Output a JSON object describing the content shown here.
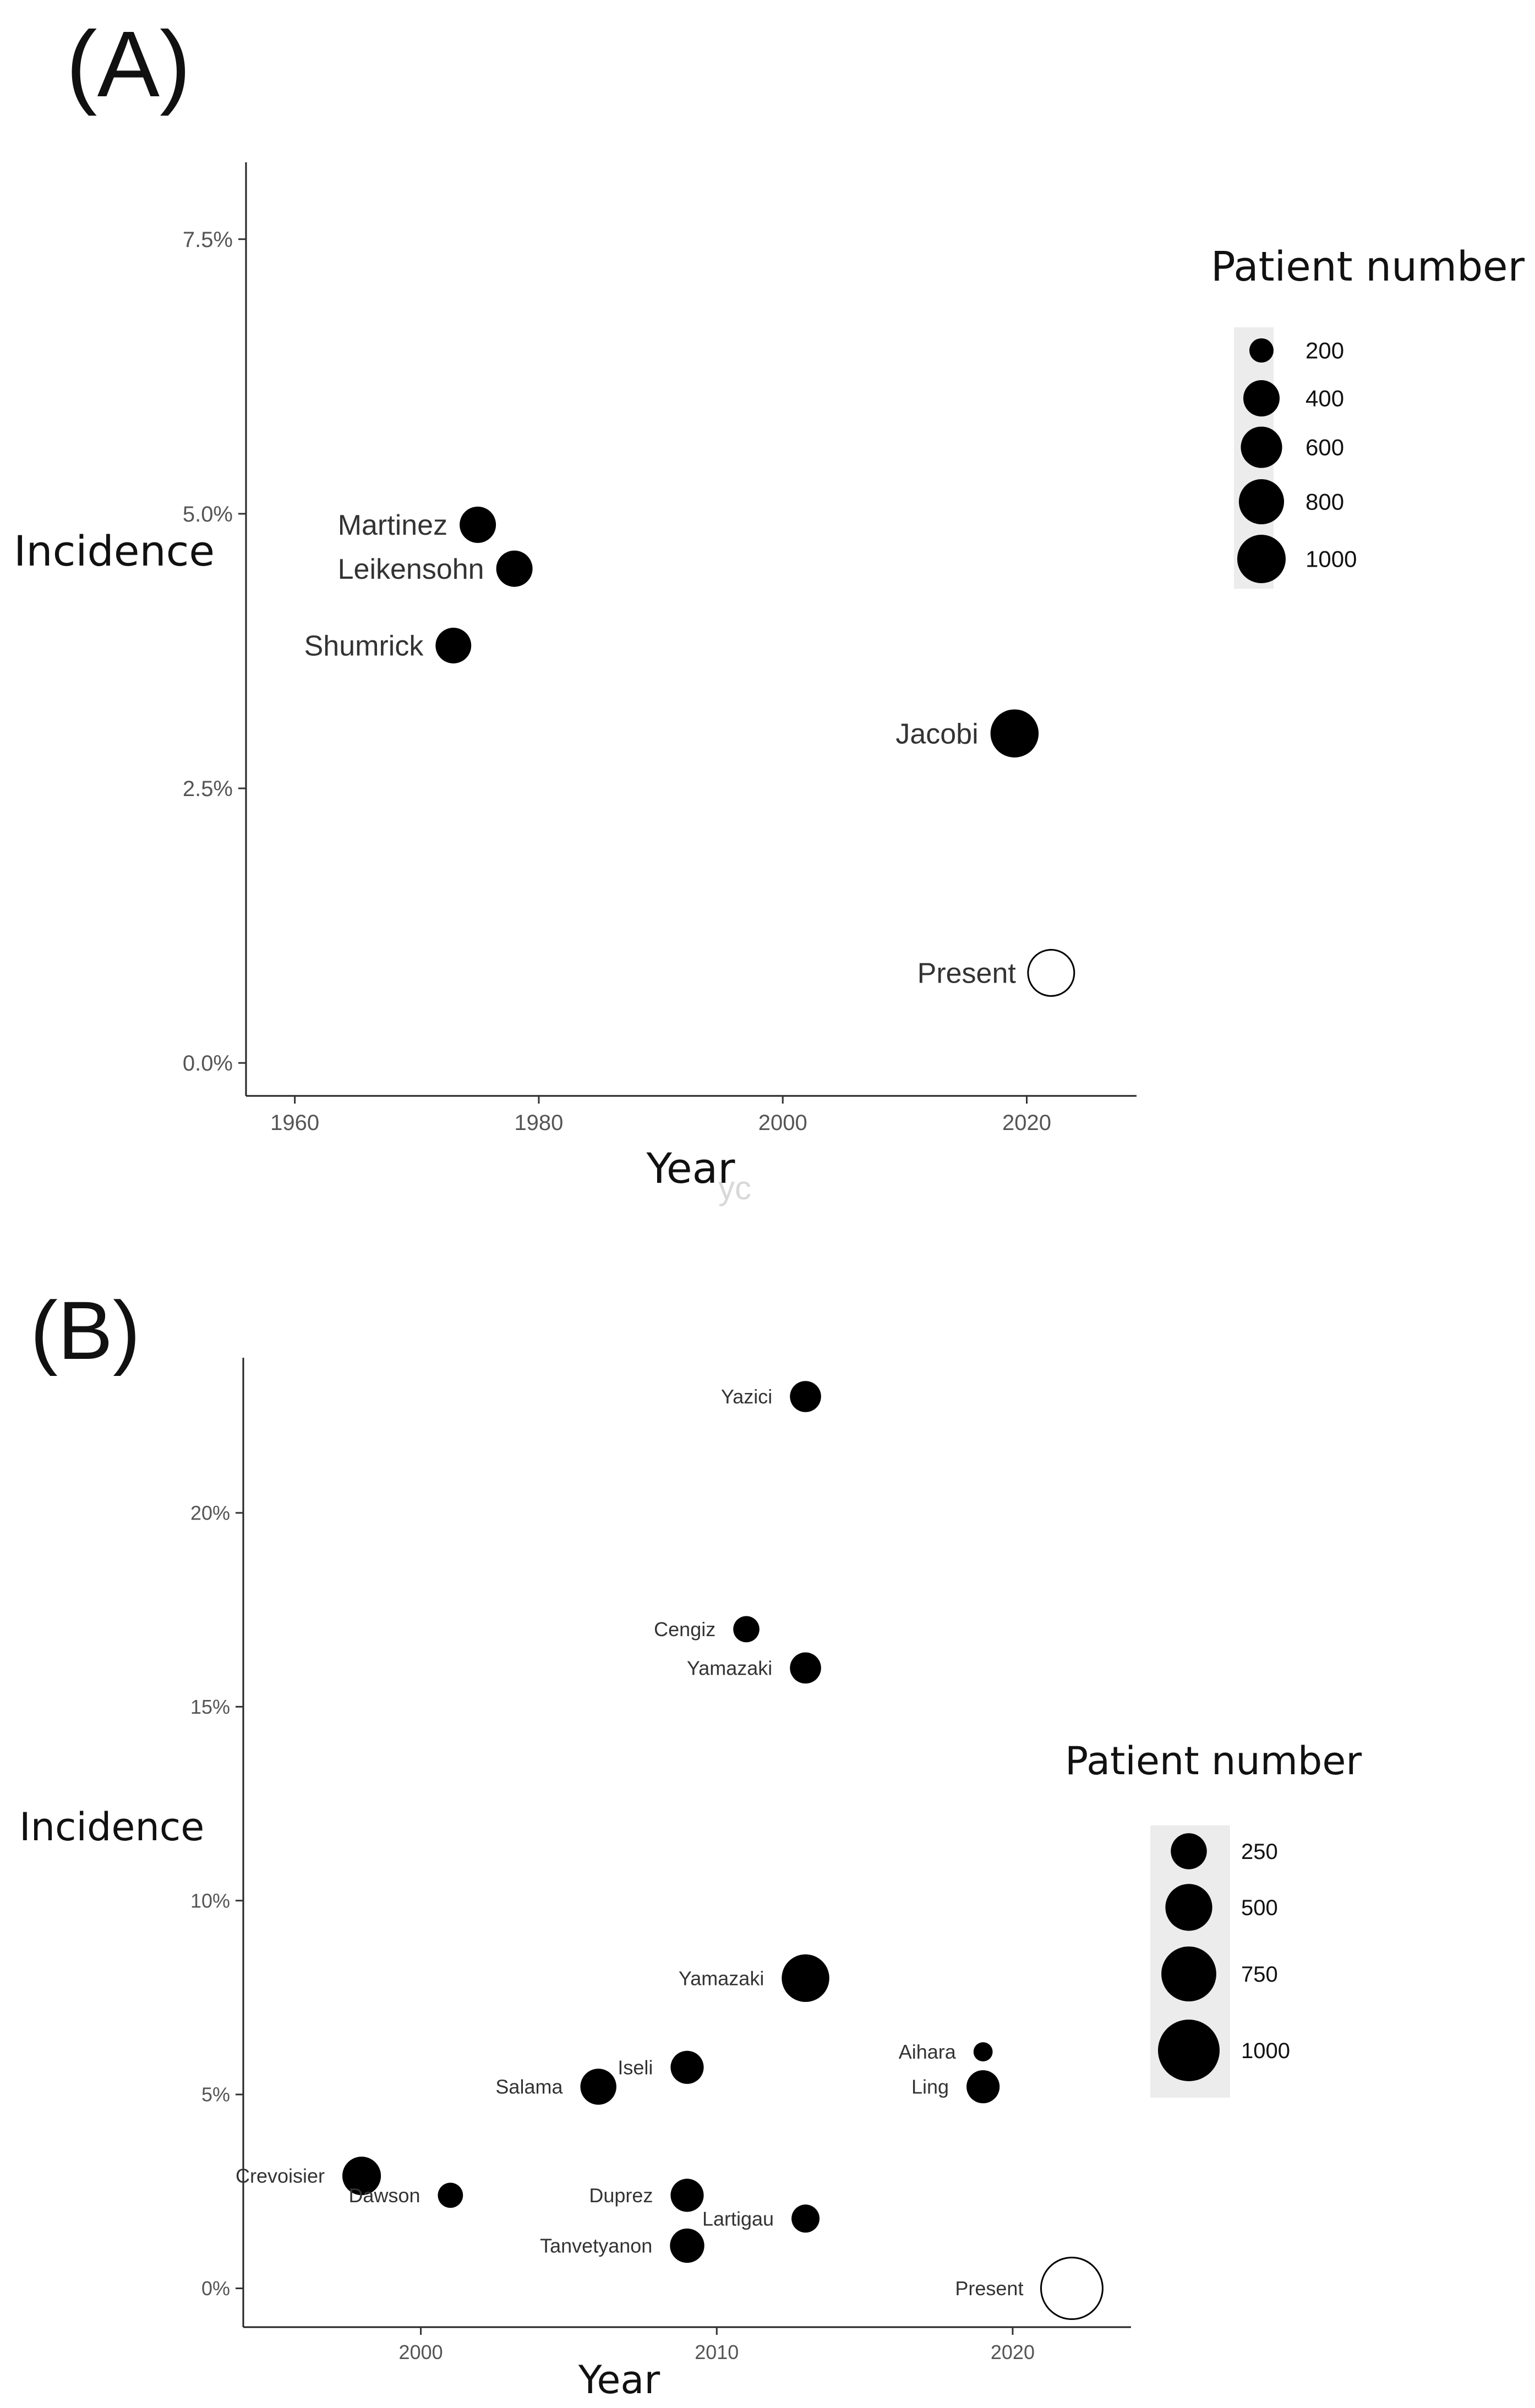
{
  "chart_data": [
    {
      "panel": "(A)",
      "type": "scatter",
      "title": "",
      "xlabel": "Year",
      "ylabel": "Incidence",
      "xlim": [
        1956,
        2029
      ],
      "ylim": [
        -0.3,
        8.2
      ],
      "x_ticks": [
        1960,
        1980,
        2000,
        2020
      ],
      "x_tick_labels": [
        "1960",
        "1980",
        "2000",
        "2020"
      ],
      "y_ticks": [
        0,
        2.5,
        5,
        7.5
      ],
      "y_tick_labels": [
        "0.0%",
        "2.5%",
        "5.0%",
        "7.5%"
      ],
      "size_scale": {
        "min_value": 200,
        "max_value": 1000
      },
      "points": [
        {
          "label": "Martinez",
          "x": 1975,
          "y": 4.9,
          "patients": 400,
          "filled": true
        },
        {
          "label": "Leikensohn",
          "x": 1978,
          "y": 4.5,
          "patients": 400,
          "filled": true
        },
        {
          "label": "Shumrick",
          "x": 1973,
          "y": 3.8,
          "patients": 380,
          "filled": true
        },
        {
          "label": "Jacobi",
          "x": 2019,
          "y": 3.0,
          "patients": 980,
          "filled": true
        },
        {
          "label": "Present",
          "x": 2022,
          "y": 0.82,
          "patients": 860,
          "filled": false
        }
      ],
      "legend": {
        "title": "Patient number",
        "placement": "right",
        "entries": [
          {
            "label": "200",
            "value": 200
          },
          {
            "label": "400",
            "value": 400
          },
          {
            "label": "600",
            "value": 600
          },
          {
            "label": "800",
            "value": 800
          },
          {
            "label": "1000",
            "value": 1000
          }
        ]
      },
      "watermark": "yc"
    },
    {
      "panel": "(B)",
      "type": "scatter",
      "title": "",
      "xlabel": "Year",
      "ylabel": "Incidence",
      "xlim": [
        1994,
        2024
      ],
      "ylim": [
        -1,
        24
      ],
      "x_ticks": [
        2000,
        2010,
        2020
      ],
      "x_tick_labels": [
        "2000",
        "2010",
        "2020"
      ],
      "y_ticks": [
        0,
        5,
        10,
        15,
        20
      ],
      "y_tick_labels": [
        "0%",
        "5%",
        "10%",
        "15%",
        "20%"
      ],
      "size_scale": {
        "min_value": 50,
        "max_value": 1000
      },
      "points": [
        {
          "label": "Yazici",
          "x": 2013,
          "y": 23.0,
          "patients": 170,
          "filled": true
        },
        {
          "label": "Cengiz",
          "x": 2011,
          "y": 17.0,
          "patients": 110,
          "filled": true
        },
        {
          "label": "Yamazaki",
          "x": 2013,
          "y": 16.0,
          "patients": 170,
          "filled": true
        },
        {
          "label": "Yamazaki",
          "x": 2013,
          "y": 8.0,
          "patients": 520,
          "filled": true
        },
        {
          "label": "Iseli",
          "x": 2009,
          "y": 5.7,
          "patients": 200,
          "filled": true
        },
        {
          "label": "Salama",
          "x": 2006,
          "y": 5.2,
          "patients": 250,
          "filled": true
        },
        {
          "label": "Aihara",
          "x": 2019,
          "y": 6.1,
          "patients": 60,
          "filled": true
        },
        {
          "label": "Ling",
          "x": 2019,
          "y": 5.2,
          "patients": 200,
          "filled": true
        },
        {
          "label": "Crevoisier",
          "x": 1998,
          "y": 2.9,
          "patients": 300,
          "filled": true
        },
        {
          "label": "Dawson",
          "x": 2001,
          "y": 2.4,
          "patients": 100,
          "filled": true
        },
        {
          "label": "Duprez",
          "x": 2009,
          "y": 2.4,
          "patients": 200,
          "filled": true
        },
        {
          "label": "Lartigau",
          "x": 2013,
          "y": 1.8,
          "patients": 130,
          "filled": true
        },
        {
          "label": "Tanvetyanon",
          "x": 2009,
          "y": 1.1,
          "patients": 220,
          "filled": true
        },
        {
          "label": "Present",
          "x": 2022,
          "y": 0.0,
          "patients": 1000,
          "filled": false
        }
      ],
      "legend": {
        "title": "Patient number",
        "placement": "right",
        "entries": [
          {
            "label": "250",
            "value": 250
          },
          {
            "label": "500",
            "value": 500
          },
          {
            "label": "750",
            "value": 750
          },
          {
            "label": "1000",
            "value": 1000
          }
        ]
      }
    }
  ]
}
